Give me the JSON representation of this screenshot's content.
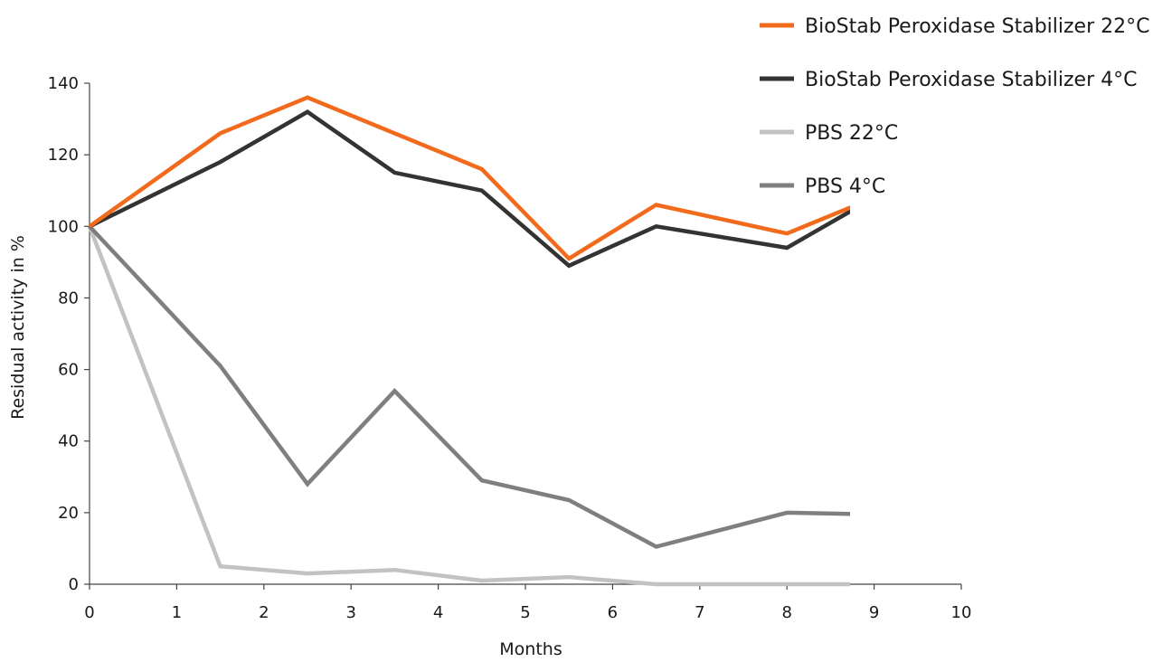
{
  "chart_data": {
    "type": "line",
    "title": "",
    "xlabel": "Months",
    "ylabel": "Residual activity in %",
    "xlim": [
      0,
      10
    ],
    "ylim": [
      0,
      140
    ],
    "xticks": [
      "0",
      "1",
      "2",
      "3",
      "4",
      "5",
      "6",
      "7",
      "8",
      "9",
      "10"
    ],
    "yticks": [
      "0",
      "20",
      "40",
      "60",
      "80",
      "100",
      "120",
      "140"
    ],
    "grid": false,
    "legend": "top-right",
    "series": [
      {
        "name": "BioStab Peroxidase Stabilizer 22°C",
        "color": "#f26a1b",
        "x": [
          0,
          1.5,
          2.5,
          3.5,
          4.5,
          5.5,
          6.5,
          8,
          9
        ],
        "y": [
          100,
          126,
          136,
          126,
          116,
          91,
          106,
          98,
          108
        ]
      },
      {
        "name": "BioStab Peroxidase Stabilizer 4°C",
        "color": "#333333",
        "x": [
          0,
          1.5,
          2.5,
          3.5,
          4.5,
          5.5,
          6.5,
          8,
          9
        ],
        "y": [
          100,
          118,
          132,
          115,
          110,
          89,
          100,
          94,
          108
        ]
      },
      {
        "name": "PBS 22°C",
        "color": "#c2c2c2",
        "x": [
          0,
          1.5,
          2.5,
          3.5,
          4.5,
          5.5,
          6.5,
          8,
          9
        ],
        "y": [
          100,
          5,
          3,
          4,
          1,
          2,
          0,
          0,
          0
        ]
      },
      {
        "name": "PBS 4°C",
        "color": "#7f7f7f",
        "x": [
          0,
          1.5,
          2.5,
          3.5,
          4.5,
          5.5,
          6.5,
          8,
          9
        ],
        "y": [
          100,
          61,
          28,
          54,
          29,
          23.5,
          10.5,
          20,
          19.5
        ]
      }
    ]
  }
}
